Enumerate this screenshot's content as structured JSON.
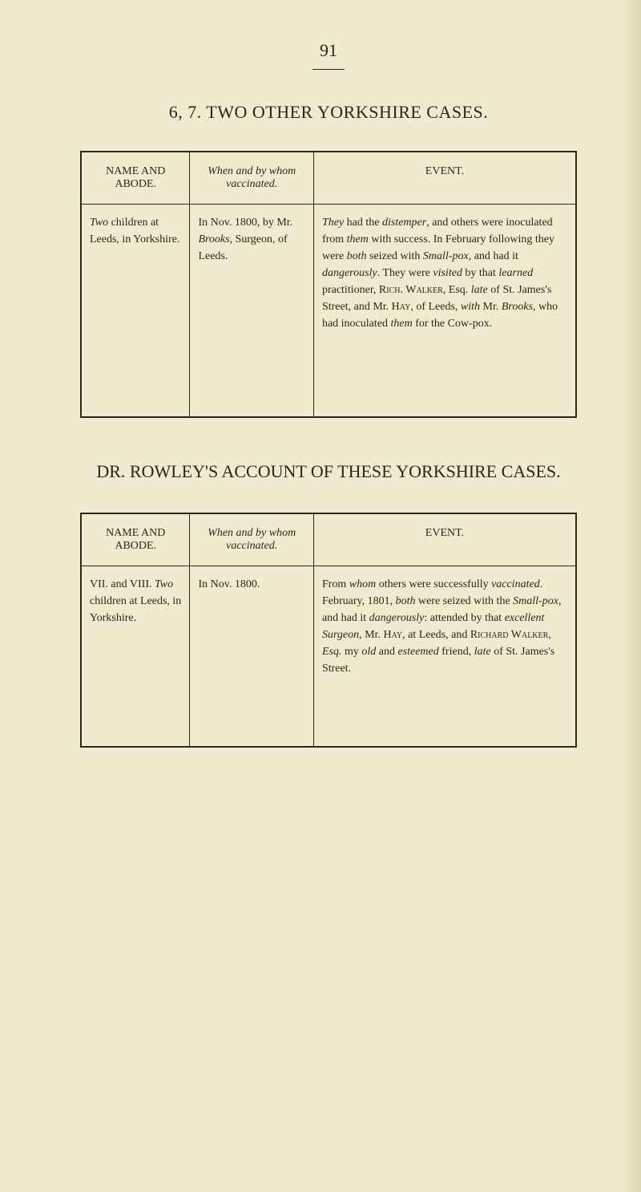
{
  "page_number": "91",
  "section1": {
    "title": "6, 7. TWO OTHER YORKSHIRE CASES.",
    "columns": [
      "NAME AND ABODE.",
      "When and by whom vaccinated.",
      "EVENT."
    ],
    "row": {
      "name_abode": "<em>Two</em> children at Leeds, in Yorkshire.",
      "when_whom": "In Nov. 1800, by Mr. <em>Brooks</em>, Surgeon, of Leeds.",
      "event": "<em>They</em> had the <em>distemper</em>, and others were inoculated from <em>them</em> with success. In February following they were <em>both</em> seized with <em>Small-pox</em>, and had it <em>dangerously</em>. They were <em>visited</em> by that <em>learned</em> practitioner, <span class=\"small-caps\">Rich. Walker</span>, Esq. <em>late</em> of St. James's Street, and Mr. <span class=\"small-caps\">Hay</span>, of Leeds, <em>with</em> Mr. <em>Brooks</em>, who had inoculated <em>them</em> for the Cow-pox."
    }
  },
  "section2": {
    "title": "DR. ROWLEY'S ACCOUNT OF THESE YORKSHIRE CASES.",
    "columns": [
      "NAME AND ABODE.",
      "When and by whom vaccinated.",
      "EVENT."
    ],
    "row": {
      "name_abode": "VII. and VIII. <em>Two</em> children at Leeds, in Yorkshire.",
      "when_whom": "In Nov. 1800.",
      "event": "From <em>whom</em> others were successfully <em>vaccinated</em>. February, 1801, <em>both</em> were seized with the <em>Small-pox</em>, and had it <em>dangerously</em>: attended by that <em>excellent Surgeon</em>, Mr. <span class=\"small-caps\">Hay</span>, at Leeds, and <span class=\"small-caps\">Richard Walker</span>, <em>Esq.</em> my <em>old</em> and <em>esteemed</em> friend, <em>late</em> of St. James's Street."
    }
  },
  "style": {
    "background": "#f0ebcf",
    "text_color": "#2a2818",
    "border_color": "#2a2818",
    "font_family": "Georgia, Times New Roman, serif",
    "page_number_fontsize": 22,
    "title_fontsize": 22,
    "header_fontsize": 14,
    "cell_fontsize": 14
  }
}
